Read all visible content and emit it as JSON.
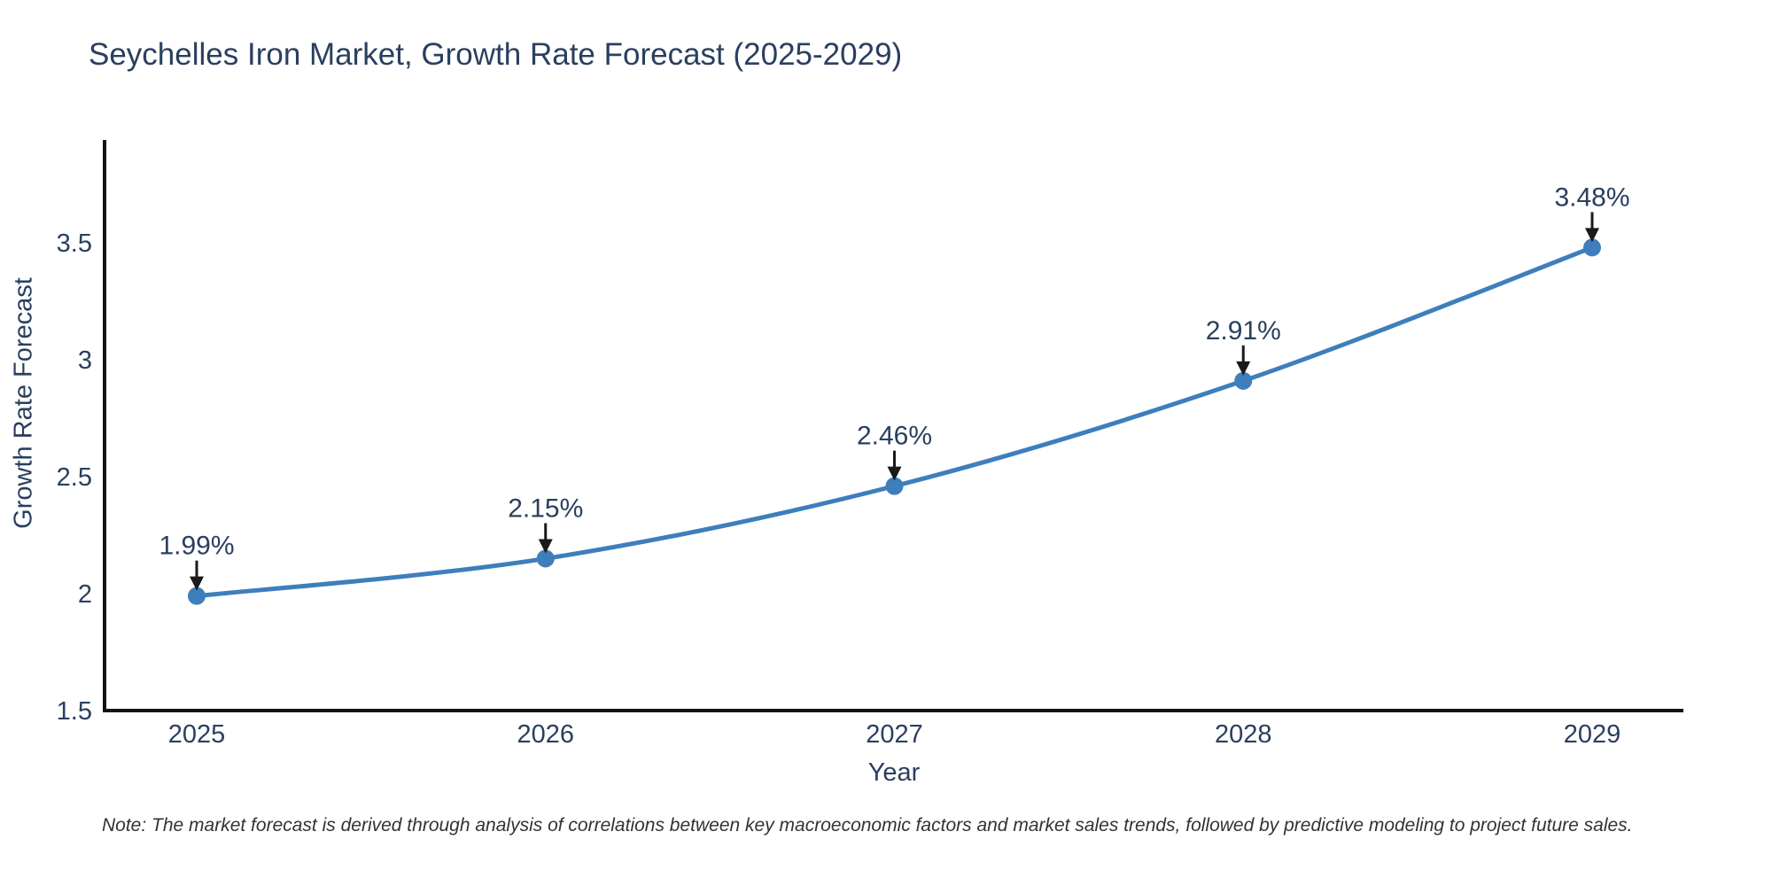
{
  "chart": {
    "title": "Seychelles Iron Market, Growth Rate Forecast (2025-2029)",
    "x_axis_title": "Year",
    "y_axis_title": "Growth Rate Forecast",
    "note": "Note: The market forecast is derived through analysis of correlations between key macroeconomic factors and market sales trends, followed by predictive modeling to project future sales."
  },
  "chart_data": {
    "type": "line",
    "title": "Seychelles Iron Market, Growth Rate Forecast (2025-2029)",
    "xlabel": "Year",
    "ylabel": "Growth Rate Forecast",
    "categories": [
      "2025",
      "2026",
      "2027",
      "2028",
      "2029"
    ],
    "values": [
      1.99,
      2.15,
      2.46,
      2.91,
      3.48
    ],
    "point_labels": [
      "1.99%",
      "2.15%",
      "2.46%",
      "2.91%",
      "3.48%"
    ],
    "ytick_labels": [
      "1.5",
      "2",
      "2.5",
      "3",
      "3.5"
    ],
    "ytick_values": [
      1.5,
      2,
      2.5,
      3,
      3.5
    ],
    "ylim": [
      1.5,
      3.94
    ],
    "line_shape": "spline",
    "grid": false,
    "legend_position": "none",
    "colors": {
      "line": "#3e7ebd",
      "marker": "#3e7ebd",
      "arrow": "#1a1a1a",
      "text": "#2a3f5f",
      "axis": "#131313",
      "note": "#333333"
    }
  }
}
